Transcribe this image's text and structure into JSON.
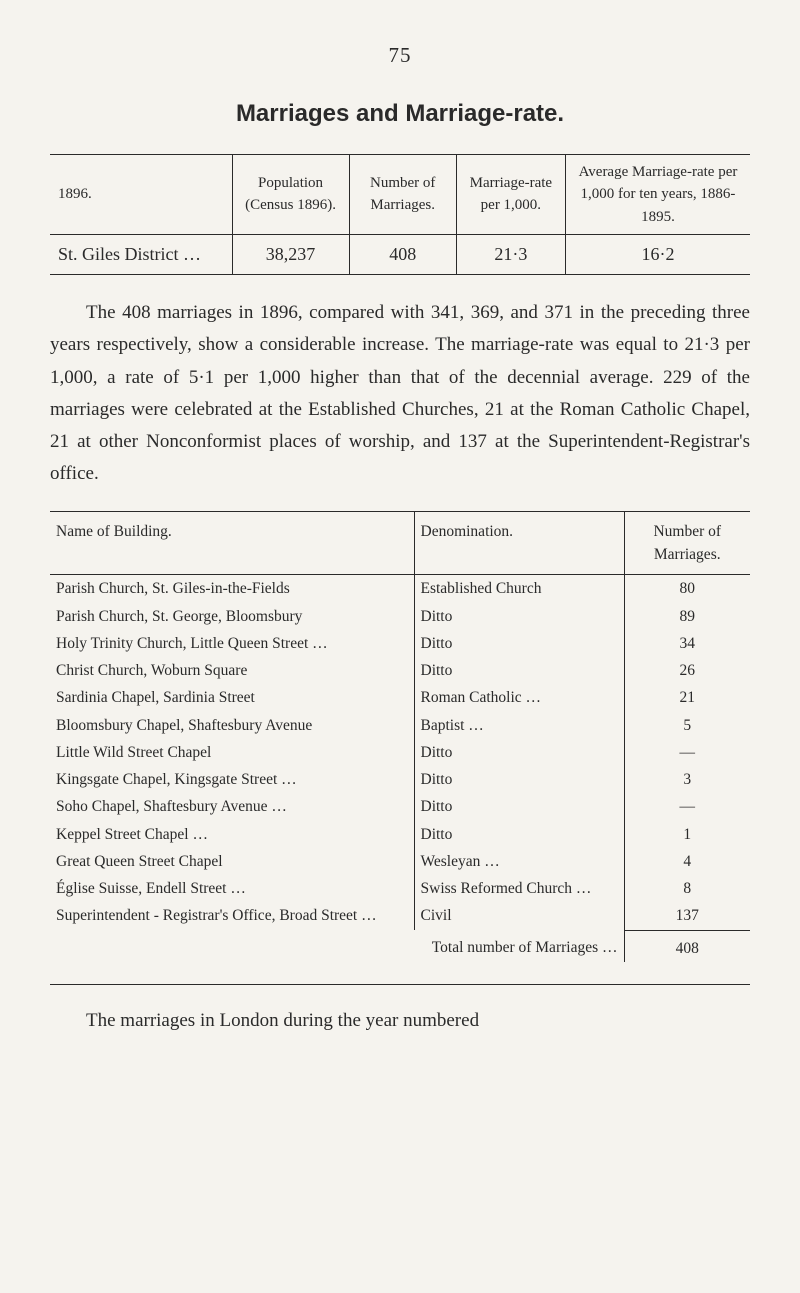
{
  "page_number": "75",
  "title": "Marriages and Marriage-rate.",
  "table1": {
    "headers": [
      "1896.",
      "Population (Census 1896).",
      "Number of Marriages.",
      "Marriage-rate per 1,000.",
      "Average Marriage-rate per 1,000 for ten years, 1886-1895."
    ],
    "row_label": "St. Giles District …",
    "values": [
      "38,237",
      "408",
      "21·3",
      "16·2"
    ]
  },
  "paragraph": "The 408 marriages in 1896, compared with 341, 369, and 371 in the preceding three years respectively, show a considerable increase. The marriage-rate was equal to 21·3 per 1,000, a rate of 5·1 per 1,000 higher than that of the decennial average. 229 of the marriages were celebrated at the Established Churches, 21 at the Roman Catholic Chapel, 21 at other Nonconformist places of worship, and 137 at the Superintendent-Registrar's office.",
  "table2": {
    "headers": [
      "Name of Building.",
      "Denomination.",
      "Number of Marriages."
    ],
    "rows": [
      {
        "name": "Parish Church, St. Giles-in-the-Fields",
        "denom": "Established Church",
        "num": "80"
      },
      {
        "name": "Parish Church, St. George, Bloomsbury",
        "denom": "Ditto",
        "num": "89"
      },
      {
        "name": "Holy Trinity Church, Little Queen Street …",
        "denom": "Ditto",
        "num": "34"
      },
      {
        "name": "Christ Church, Woburn Square",
        "denom": "Ditto",
        "num": "26"
      },
      {
        "name": "Sardinia Chapel, Sardinia Street",
        "denom": "Roman Catholic …",
        "num": "21"
      },
      {
        "name": "Bloomsbury Chapel, Shaftesbury Avenue",
        "denom": "Baptist …",
        "num": "5"
      },
      {
        "name": "Little Wild Street Chapel",
        "denom": "Ditto",
        "num": "—"
      },
      {
        "name": "Kingsgate Chapel, Kingsgate Street …",
        "denom": "Ditto",
        "num": "3"
      },
      {
        "name": "Soho Chapel, Shaftesbury Avenue …",
        "denom": "Ditto",
        "num": "—"
      },
      {
        "name": "Keppel Street Chapel …",
        "denom": "Ditto",
        "num": "1"
      },
      {
        "name": "Great Queen Street Chapel",
        "denom": "Wesleyan …",
        "num": "4"
      },
      {
        "name": "Église Suisse, Endell Street …",
        "denom": "Swiss Reformed Church …",
        "num": "8"
      },
      {
        "name": "Superintendent - Registrar's Office, Broad Street …",
        "denom": "Civil",
        "num": "137"
      }
    ],
    "total_label": "Total number of Marriages",
    "total_value": "408"
  },
  "footer": "The marriages in London during the year numbered"
}
